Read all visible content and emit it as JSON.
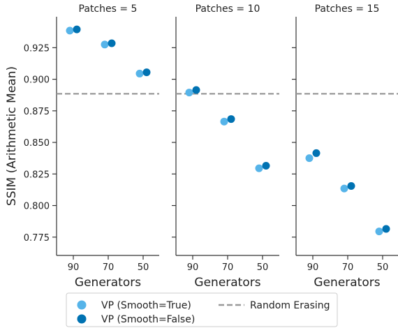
{
  "chart_data": {
    "type": "scatter",
    "ylabel": "SSIM (Arithmetic Mean)",
    "xlabel": "Generators",
    "y_axis_inverted": true,
    "ylim": [
      0.9495,
      0.7605
    ],
    "yticks": [
      0.775,
      0.8,
      0.825,
      0.85,
      0.875,
      0.9,
      0.925
    ],
    "ytick_labels": [
      "0.775",
      "0.800",
      "0.825",
      "0.850",
      "0.875",
      "0.900",
      "0.925"
    ],
    "categories": [
      "90",
      "70",
      "50"
    ],
    "grid": false,
    "legend": {
      "position": "bottom-center",
      "entries": [
        "VP (Smooth=True)",
        "VP (Smooth=False)",
        "Random Erasing"
      ]
    },
    "colors": {
      "smooth_true": "#56b4e9",
      "smooth_false": "#0072b2",
      "random_erasing": "#999999",
      "axis": "#333333"
    },
    "panels": [
      {
        "title": "Patches = 5",
        "series": [
          {
            "name": "VP (Smooth=True)",
            "values": [
              0.9385,
              0.9275,
              0.9045
            ]
          },
          {
            "name": "VP (Smooth=False)",
            "values": [
              0.9395,
              0.9285,
              0.9055
            ]
          }
        ],
        "random_erasing": 0.8885
      },
      {
        "title": "Patches = 10",
        "series": [
          {
            "name": "VP (Smooth=True)",
            "values": [
              0.8895,
              0.8665,
              0.8295
            ]
          },
          {
            "name": "VP (Smooth=False)",
            "values": [
              0.8915,
              0.8685,
              0.8315
            ]
          }
        ],
        "random_erasing": 0.8885
      },
      {
        "title": "Patches = 15",
        "series": [
          {
            "name": "VP (Smooth=True)",
            "values": [
              0.8375,
              0.8135,
              0.7795
            ]
          },
          {
            "name": "VP (Smooth=False)",
            "values": [
              0.8415,
              0.8155,
              0.7815
            ]
          }
        ],
        "random_erasing": 0.8885
      }
    ]
  }
}
